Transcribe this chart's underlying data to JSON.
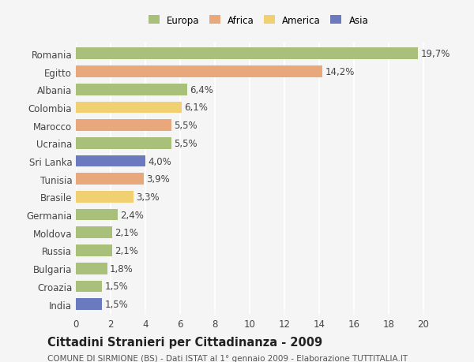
{
  "countries": [
    "Romania",
    "Egitto",
    "Albania",
    "Colombia",
    "Marocco",
    "Ucraina",
    "Sri Lanka",
    "Tunisia",
    "Brasile",
    "Germania",
    "Moldova",
    "Russia",
    "Bulgaria",
    "Croazia",
    "India"
  ],
  "values": [
    19.7,
    14.2,
    6.4,
    6.1,
    5.5,
    5.5,
    4.0,
    3.9,
    3.3,
    2.4,
    2.1,
    2.1,
    1.8,
    1.5,
    1.5
  ],
  "labels": [
    "19,7%",
    "14,2%",
    "6,4%",
    "6,1%",
    "5,5%",
    "5,5%",
    "4,0%",
    "3,9%",
    "3,3%",
    "2,4%",
    "2,1%",
    "2,1%",
    "1,8%",
    "1,5%",
    "1,5%"
  ],
  "colors": [
    "#a8c07a",
    "#e8a87c",
    "#a8c07a",
    "#f0d070",
    "#e8a87c",
    "#a8c07a",
    "#6b7abf",
    "#e8a87c",
    "#f0d070",
    "#a8c07a",
    "#a8c07a",
    "#a8c07a",
    "#a8c07a",
    "#a8c07a",
    "#6b7abf"
  ],
  "legend_labels": [
    "Europa",
    "Africa",
    "America",
    "Asia"
  ],
  "legend_colors": [
    "#a8c07a",
    "#e8a87c",
    "#f0d070",
    "#6b7abf"
  ],
  "title": "Cittadini Stranieri per Cittadinanza - 2009",
  "subtitle": "COMUNE DI SIRMIONE (BS) - Dati ISTAT al 1° gennaio 2009 - Elaborazione TUTTITALIA.IT",
  "xlim": [
    0,
    21
  ],
  "xticks": [
    0,
    2,
    4,
    6,
    8,
    10,
    12,
    14,
    16,
    18,
    20
  ],
  "background_color": "#f5f5f5",
  "grid_color": "#ffffff",
  "bar_height": 0.65,
  "label_fontsize": 8.5,
  "tick_fontsize": 8.5,
  "title_fontsize": 10.5,
  "subtitle_fontsize": 7.5
}
